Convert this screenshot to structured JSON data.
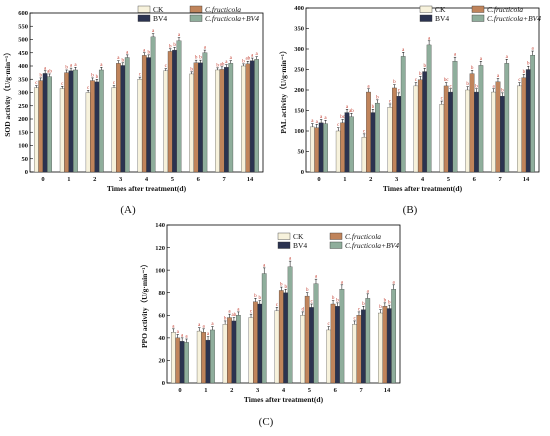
{
  "chart_data": [
    {
      "type": "bar",
      "panel_label": "(A)",
      "xlabel": "Times after treatment(d)",
      "ylabel": "SOD activity（U/g·min⁻¹）",
      "categories": [
        "0",
        "1",
        "2",
        "3",
        "4",
        "5",
        "6",
        "7",
        "14"
      ],
      "ylim": [
        0,
        600
      ],
      "yticks": [
        0,
        50,
        100,
        150,
        200,
        250,
        300,
        350,
        400,
        450,
        500,
        550,
        600
      ],
      "series": [
        {
          "name": "CK",
          "color": "#f7f2dc",
          "values": [
            318,
            315,
            300,
            318,
            350,
            382,
            370,
            385,
            400
          ],
          "errors": [
            8,
            8,
            8,
            8,
            8,
            8,
            8,
            8,
            8
          ],
          "sig": [
            "c",
            "c",
            "c",
            "c",
            "c",
            "c",
            "b",
            "b",
            "b"
          ]
        },
        {
          "name": "C.fructicola",
          "color": "#c0845b",
          "values": [
            345,
            375,
            345,
            410,
            440,
            455,
            412,
            387,
            408
          ],
          "errors": [
            10,
            10,
            10,
            10,
            10,
            10,
            10,
            10,
            10
          ],
          "sig": [
            "b",
            "b",
            "b",
            "a",
            "a",
            "b",
            "b",
            "ab",
            "ab"
          ]
        },
        {
          "name": "BV4",
          "color": "#2b3350",
          "values": [
            372,
            382,
            340,
            402,
            432,
            460,
            412,
            395,
            420
          ],
          "errors": [
            10,
            10,
            10,
            10,
            10,
            10,
            10,
            10,
            10
          ],
          "sig": [
            "a",
            "a",
            "b",
            "b",
            "b",
            "b",
            "b",
            "a",
            "a"
          ]
        },
        {
          "name": "C.fructicola+BV4",
          "color": "#8fae9c",
          "values": [
            360,
            385,
            385,
            432,
            510,
            495,
            450,
            410,
            425
          ],
          "errors": [
            10,
            10,
            10,
            10,
            12,
            12,
            10,
            10,
            10
          ],
          "sig": [
            "ab",
            "a",
            "a",
            "a",
            "a",
            "a",
            "a",
            "a",
            "a"
          ]
        }
      ]
    },
    {
      "type": "bar",
      "panel_label": "(B)",
      "xlabel": "Times after treatment(d)",
      "ylabel": "PAL activity（U/g·min⁻¹）",
      "categories": [
        "0",
        "1",
        "2",
        "3",
        "4",
        "5",
        "6",
        "7",
        "14"
      ],
      "ylim": [
        0,
        400
      ],
      "yticks": [
        0,
        50,
        100,
        150,
        200,
        250,
        300,
        350,
        400
      ],
      "series": [
        {
          "name": "CK",
          "color": "#f7f2dc",
          "values": [
            110,
            100,
            85,
            158,
            210,
            165,
            200,
            195,
            210
          ],
          "errors": [
            8,
            8,
            8,
            8,
            8,
            8,
            8,
            8,
            8
          ],
          "sig": [
            "a",
            "c",
            "c",
            "c",
            "c",
            "c",
            "b",
            "a",
            "c"
          ]
        },
        {
          "name": "C.fructicola",
          "color": "#c0845b",
          "values": [
            108,
            120,
            195,
            205,
            225,
            210,
            240,
            220,
            230
          ],
          "errors": [
            8,
            8,
            8,
            8,
            8,
            8,
            8,
            8,
            8
          ],
          "sig": [
            "a",
            "bc",
            "a",
            "b",
            "b",
            "bc",
            "b",
            "a",
            "b"
          ]
        },
        {
          "name": "BV4",
          "color": "#2b3350",
          "values": [
            120,
            145,
            145,
            185,
            245,
            195,
            195,
            185,
            250
          ],
          "errors": [
            8,
            8,
            8,
            8,
            8,
            8,
            8,
            8,
            8
          ],
          "sig": [
            "a",
            "a",
            "b",
            "c",
            "b",
            "c",
            "b",
            "b",
            "b"
          ]
        },
        {
          "name": "C.fructicola+BV4",
          "color": "#8fae9c",
          "values": [
            118,
            135,
            168,
            282,
            310,
            270,
            260,
            265,
            285
          ],
          "errors": [
            8,
            8,
            8,
            10,
            10,
            10,
            10,
            10,
            10
          ],
          "sig": [
            "a",
            "ab",
            "b",
            "a",
            "a",
            "a",
            "a",
            "a",
            "a"
          ]
        }
      ]
    },
    {
      "type": "bar",
      "panel_label": "(C)",
      "xlabel": "Times after treatment(d)",
      "ylabel": "PPO activity（U/g·min⁻¹）",
      "categories": [
        "0",
        "1",
        "2",
        "3",
        "4",
        "5",
        "6",
        "7",
        "14"
      ],
      "ylim": [
        0,
        140
      ],
      "yticks": [
        0,
        20,
        40,
        60,
        80,
        100,
        120,
        140
      ],
      "series": [
        {
          "name": "CK",
          "color": "#f7f2dc",
          "values": [
            45,
            46,
            52,
            58,
            64,
            60,
            47,
            52,
            62
          ],
          "errors": [
            3,
            3,
            3,
            3,
            3,
            3,
            3,
            3,
            3
          ],
          "sig": [
            "a",
            "a",
            "b",
            "c",
            "c",
            "d",
            "c",
            "c",
            "b"
          ]
        },
        {
          "name": "C.fructicola",
          "color": "#c0845b",
          "values": [
            40,
            45,
            58,
            72,
            82,
            77,
            70,
            60,
            68
          ],
          "errors": [
            3,
            3,
            3,
            3,
            3,
            3,
            3,
            3,
            3
          ],
          "sig": [
            "a",
            "a",
            "a",
            "b",
            "b",
            "b",
            "b",
            "c",
            "b"
          ]
        },
        {
          "name": "BV4",
          "color": "#2b3350",
          "values": [
            37,
            38,
            55,
            70,
            80,
            67,
            68,
            65,
            66
          ],
          "errors": [
            3,
            3,
            3,
            3,
            3,
            3,
            3,
            3,
            3
          ],
          "sig": [
            "a",
            "a",
            "ab",
            "b",
            "b",
            "c",
            "b",
            "b",
            "b"
          ]
        },
        {
          "name": "C.fructicola+BV4",
          "color": "#8fae9c",
          "values": [
            36,
            47,
            60,
            97,
            103,
            88,
            83,
            75,
            83
          ],
          "errors": [
            3,
            3,
            3,
            5,
            5,
            4,
            4,
            4,
            4
          ],
          "sig": [
            "a",
            "a",
            "a",
            "a",
            "a",
            "a",
            "a",
            "a",
            "a"
          ]
        }
      ]
    }
  ]
}
